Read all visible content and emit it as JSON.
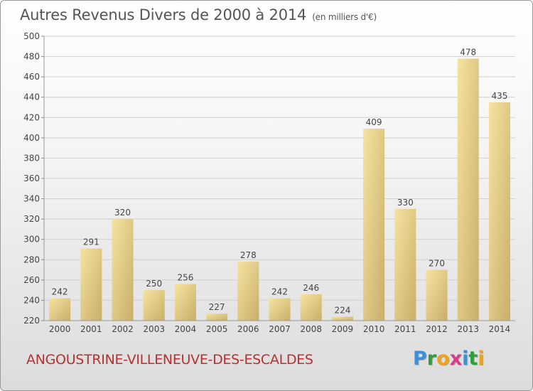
{
  "title": "Autres Revenus Divers de 2000 à 2014",
  "title_unit": "(en milliers d'€)",
  "commune": "ANGOUSTRINE-VILLENEUVE-DES-ESCALDES",
  "logo": {
    "letters": [
      "P",
      "r",
      "o",
      "x",
      "i",
      "t",
      "i"
    ],
    "colors": [
      "#3d8fd6",
      "#2f9e3f",
      "#f0a21b",
      "#d93a8c",
      "#3d8fd6",
      "#2f9e3f",
      "#f0a21b"
    ]
  },
  "colors": {
    "bar_light": "#f6e3a0",
    "bar_dark": "#c8ae6a",
    "grid": "#cfcfcf",
    "axis_text": "#444444",
    "commune": "#b8312f"
  },
  "chart_data": {
    "type": "bar",
    "categories": [
      "2000",
      "2001",
      "2002",
      "2003",
      "2004",
      "2005",
      "2006",
      "2007",
      "2008",
      "2009",
      "2010",
      "2011",
      "2012",
      "2013",
      "2014"
    ],
    "values": [
      242,
      291,
      320,
      250,
      256,
      227,
      278,
      242,
      246,
      224,
      409,
      330,
      270,
      478,
      435
    ],
    "ylim": [
      220,
      500
    ],
    "yticks": [
      220,
      240,
      260,
      280,
      300,
      320,
      340,
      360,
      380,
      400,
      420,
      440,
      460,
      480,
      500
    ],
    "grid": true
  }
}
